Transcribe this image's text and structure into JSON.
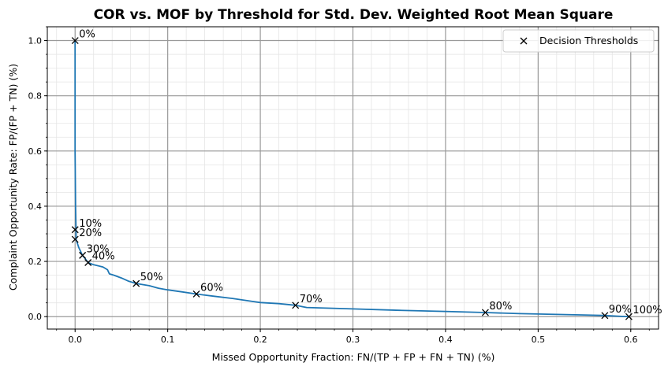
{
  "chart_data": {
    "type": "line",
    "title": "COR vs. MOF by Threshold for Std. Dev. Weighted Root Mean Square",
    "xlabel": "Missed Opportunity Fraction: FN/(TP + FP + FN + TN) (%)",
    "ylabel": "Complaint Opportunity Rate: FP/(FP + TN) (%)",
    "xlim": [
      -0.03,
      0.63
    ],
    "ylim": [
      -0.045,
      1.05
    ],
    "x_ticks": [
      0.0,
      0.1,
      0.2,
      0.3,
      0.4,
      0.5,
      0.6
    ],
    "x_tick_labels": [
      "0.0",
      "0.1",
      "0.2",
      "0.3",
      "0.4",
      "0.5",
      "0.6"
    ],
    "y_ticks": [
      0.0,
      0.2,
      0.4,
      0.6,
      0.8,
      1.0
    ],
    "y_tick_labels": [
      "0.0",
      "0.2",
      "0.4",
      "0.6",
      "0.8",
      "1.0"
    ],
    "grid": true,
    "legend": {
      "position": "top-right",
      "entries": [
        "Decision Thresholds"
      ]
    },
    "colors": {
      "curve": "#1f77b4",
      "markers": "#000000",
      "grid_major": "#999999",
      "grid_minor": "#e5e5e5"
    },
    "curve": [
      [
        0.0,
        1.0
      ],
      [
        0.0,
        0.6
      ],
      [
        0.0005,
        0.4
      ],
      [
        0.001,
        0.315
      ],
      [
        0.001,
        0.28
      ],
      [
        0.004,
        0.25
      ],
      [
        0.008,
        0.222
      ],
      [
        0.011,
        0.21
      ],
      [
        0.014,
        0.196
      ],
      [
        0.02,
        0.188
      ],
      [
        0.03,
        0.18
      ],
      [
        0.035,
        0.17
      ],
      [
        0.037,
        0.155
      ],
      [
        0.042,
        0.15
      ],
      [
        0.05,
        0.14
      ],
      [
        0.058,
        0.128
      ],
      [
        0.066,
        0.12
      ],
      [
        0.08,
        0.112
      ],
      [
        0.09,
        0.103
      ],
      [
        0.1,
        0.097
      ],
      [
        0.115,
        0.09
      ],
      [
        0.131,
        0.082
      ],
      [
        0.15,
        0.074
      ],
      [
        0.17,
        0.066
      ],
      [
        0.19,
        0.056
      ],
      [
        0.2,
        0.051
      ],
      [
        0.22,
        0.047
      ],
      [
        0.238,
        0.041
      ],
      [
        0.25,
        0.033
      ],
      [
        0.3,
        0.028
      ],
      [
        0.35,
        0.023
      ],
      [
        0.4,
        0.019
      ],
      [
        0.443,
        0.015
      ],
      [
        0.48,
        0.011
      ],
      [
        0.52,
        0.008
      ],
      [
        0.55,
        0.006
      ],
      [
        0.572,
        0.004
      ],
      [
        0.59,
        0.001
      ],
      [
        0.598,
        0.0
      ]
    ],
    "thresholds": [
      {
        "label": "0%",
        "x": 0.0,
        "y": 1.0
      },
      {
        "label": "10%",
        "x": 0.0,
        "y": 0.315
      },
      {
        "label": "20%",
        "x": 0.0,
        "y": 0.28
      },
      {
        "label": "30%",
        "x": 0.008,
        "y": 0.222
      },
      {
        "label": "40%",
        "x": 0.014,
        "y": 0.196
      },
      {
        "label": "50%",
        "x": 0.066,
        "y": 0.12
      },
      {
        "label": "60%",
        "x": 0.131,
        "y": 0.082
      },
      {
        "label": "70%",
        "x": 0.238,
        "y": 0.041
      },
      {
        "label": "80%",
        "x": 0.443,
        "y": 0.015
      },
      {
        "label": "90%",
        "x": 0.572,
        "y": 0.004
      },
      {
        "label": "100%",
        "x": 0.598,
        "y": 0.0
      }
    ]
  }
}
